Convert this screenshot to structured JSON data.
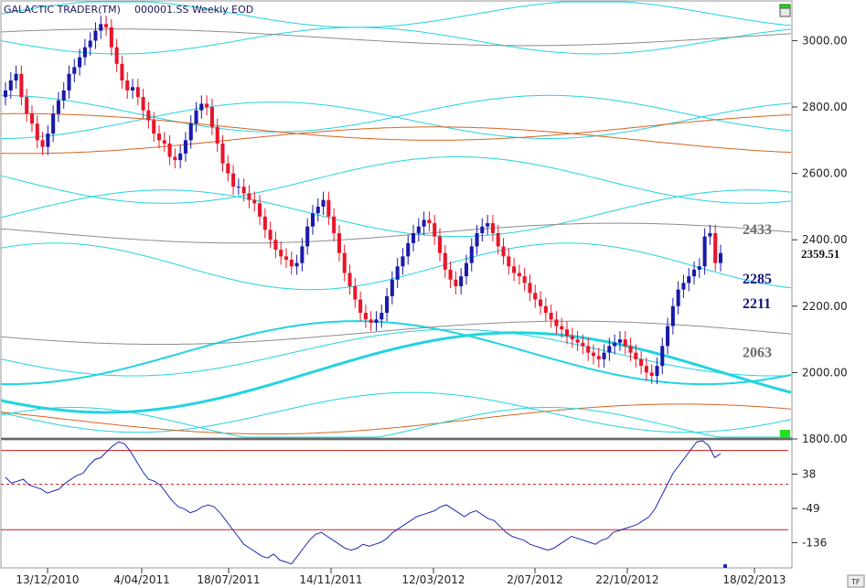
{
  "header": {
    "app_title": "GALACTIC TRADER(TM)",
    "symbol_info": "000001.SS Weekly EOD"
  },
  "colors": {
    "up_candle": "#1a1aa8",
    "down_candle": "#e8162a",
    "wave_cyan": "#22d3e0",
    "wave_gray": "#8c8c8c",
    "wave_orange": "#d8621e",
    "oscillator": "#1a2ab4",
    "osc_band": "#cc1a1a",
    "marker_green": "#22dd22"
  },
  "chart_data": [
    {
      "type": "candlestick",
      "title": "",
      "ylim": [
        1800,
        3150
      ],
      "y_ticks": [
        "3000.00",
        "2800.00",
        "2600.00",
        "2400.00",
        "2200.00",
        "2000.00",
        "1800.00"
      ],
      "last_price": "2359.51",
      "level_labels": [
        {
          "text": "2433",
          "value": 2433,
          "style": "gray"
        },
        {
          "text": "2285",
          "value": 2285,
          "style": "navy"
        },
        {
          "text": "2211",
          "value": 2211,
          "style": "navy"
        },
        {
          "text": "2063",
          "value": 2063,
          "style": "gray"
        }
      ],
      "x_tick_labels": [
        "13/12/2010",
        "4/04/2011",
        "18/07/2011",
        "14/11/2011",
        "12/03/2012",
        "2/07/2012",
        "22/10/2012",
        "18/02/2013"
      ],
      "series_closes": [
        2850,
        2880,
        2900,
        2830,
        2780,
        2750,
        2700,
        2680,
        2720,
        2780,
        2820,
        2850,
        2900,
        2920,
        2950,
        2980,
        3000,
        3030,
        3050,
        3040,
        2980,
        2930,
        2880,
        2850,
        2860,
        2830,
        2790,
        2760,
        2720,
        2700,
        2690,
        2650,
        2640,
        2660,
        2700,
        2750,
        2790,
        2810,
        2800,
        2740,
        2690,
        2630,
        2600,
        2560,
        2560,
        2540,
        2520,
        2510,
        2470,
        2430,
        2400,
        2370,
        2350,
        2340,
        2320,
        2330,
        2380,
        2440,
        2480,
        2500,
        2520,
        2470,
        2420,
        2360,
        2300,
        2260,
        2220,
        2180,
        2160,
        2150,
        2160,
        2180,
        2230,
        2280,
        2320,
        2350,
        2390,
        2420,
        2440,
        2460,
        2450,
        2410,
        2360,
        2310,
        2280,
        2260,
        2290,
        2330,
        2380,
        2420,
        2440,
        2450,
        2420,
        2380,
        2350,
        2320,
        2300,
        2290,
        2270,
        2240,
        2220,
        2200,
        2180,
        2160,
        2140,
        2130,
        2110,
        2100,
        2090,
        2080,
        2060,
        2050,
        2040,
        2060,
        2080,
        2090,
        2100,
        2080,
        2060,
        2040,
        2020,
        2000,
        1990,
        2020,
        2080,
        2140,
        2200,
        2250,
        2270,
        2290,
        2310,
        2320,
        2410,
        2420,
        2330,
        2360
      ],
      "oscillator": {
        "ylim": [
          -200,
          125
        ],
        "band_levels": [
          98,
          -103
        ],
        "mid_level": 12,
        "y_ticks": [
          "38",
          "-49",
          "-136"
        ],
        "values": [
          30,
          15,
          20,
          25,
          10,
          5,
          0,
          -10,
          -5,
          0,
          15,
          25,
          35,
          40,
          60,
          75,
          80,
          95,
          110,
          120,
          115,
          95,
          70,
          45,
          25,
          20,
          10,
          -10,
          -30,
          -45,
          -50,
          -60,
          -55,
          -45,
          -40,
          -45,
          -60,
          -80,
          -100,
          -120,
          -140,
          -150,
          -160,
          -170,
          -175,
          -165,
          -180,
          -185,
          -190,
          -170,
          -150,
          -130,
          -115,
          -110,
          -120,
          -130,
          -140,
          -150,
          -155,
          -150,
          -140,
          -145,
          -140,
          -135,
          -125,
          -110,
          -100,
          -90,
          -80,
          -70,
          -65,
          -60,
          -55,
          -45,
          -40,
          -50,
          -60,
          -70,
          -60,
          -55,
          -65,
          -75,
          -80,
          -95,
          -110,
          -120,
          -125,
          -130,
          -140,
          -145,
          -150,
          -155,
          -150,
          -140,
          -130,
          -120,
          -125,
          -130,
          -135,
          -140,
          -130,
          -125,
          -110,
          -105,
          -100,
          -95,
          -90,
          -80,
          -70,
          -50,
          -20,
          10,
          40,
          60,
          80,
          100,
          120,
          125,
          110,
          80,
          90
        ],
        "tail_marker": -210
      }
    }
  ]
}
